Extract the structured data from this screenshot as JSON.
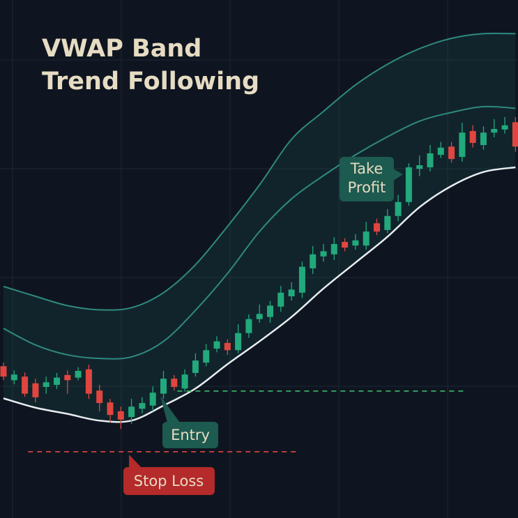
{
  "chart_data": {
    "type": "candlestick",
    "title": [
      "VWAP Band",
      "Trend Following"
    ],
    "xlim": [
      -0.327,
      48.235
    ],
    "ylim": [
      0,
      100
    ],
    "up_color": "#22a97c",
    "down_color": "#e0463f",
    "open": [
      29.3,
      26.6,
      27.3,
      26.0,
      25.3,
      25.7,
      27.6,
      27.1,
      28.7,
      24.6,
      22.3,
      20.6,
      19.5,
      21.1,
      21.7,
      24.0,
      26.9,
      25.0,
      28.0,
      30.0,
      32.7,
      33.8,
      32.4,
      35.7,
      38.4,
      38.8,
      40.8,
      42.8,
      43.5,
      48.2,
      50.5,
      50.9,
      53.3,
      52.6,
      52.6,
      56.9,
      55.6,
      58.3,
      61.0,
      67.4,
      67.7,
      70.1,
      71.7,
      69.7,
      74.7,
      72.0,
      74.4,
      75.0,
      76.4
    ],
    "close": [
      27.3,
      27.7,
      24.0,
      23.3,
      26.2,
      27.1,
      26.6,
      28.4,
      24.0,
      22.2,
      19.9,
      19.0,
      21.5,
      22.2,
      24.2,
      26.9,
      25.3,
      27.7,
      30.4,
      32.4,
      34.1,
      32.4,
      35.7,
      38.4,
      39.4,
      41.0,
      43.5,
      44.1,
      48.5,
      50.9,
      51.5,
      52.9,
      52.2,
      53.6,
      55.3,
      55.3,
      58.3,
      61.0,
      67.7,
      68.1,
      70.4,
      71.5,
      69.3,
      74.4,
      72.4,
      74.4,
      75.1,
      75.8,
      71.7
    ],
    "high": [
      30.0,
      28.5,
      28.1,
      26.9,
      27.3,
      28.0,
      28.5,
      29.1,
      29.6,
      25.7,
      23.0,
      21.5,
      23.0,
      23.3,
      25.4,
      28.4,
      27.6,
      28.7,
      31.8,
      33.6,
      35.1,
      34.5,
      37.4,
      39.3,
      41.2,
      41.9,
      44.8,
      45.5,
      49.5,
      52.5,
      52.9,
      54.2,
      54.0,
      54.8,
      57.2,
      57.8,
      59.6,
      62.4,
      68.5,
      70.0,
      72.0,
      72.6,
      72.6,
      76.3,
      75.8,
      75.6,
      77.0,
      77.4,
      77.4
    ],
    "low": [
      26.6,
      25.8,
      23.4,
      22.3,
      24.0,
      24.9,
      24.0,
      26.6,
      23.0,
      20.6,
      18.4,
      17.2,
      18.2,
      20.2,
      20.6,
      23.0,
      24.6,
      24.4,
      27.3,
      29.3,
      32.0,
      31.5,
      31.8,
      34.8,
      37.7,
      37.7,
      39.8,
      42.0,
      42.5,
      47.1,
      49.5,
      49.8,
      51.5,
      51.8,
      51.8,
      54.6,
      55.0,
      57.3,
      60.3,
      66.0,
      66.9,
      69.5,
      68.6,
      68.8,
      71.5,
      71.1,
      73.5,
      74.2,
      70.7
    ],
    "bands": {
      "x": [
        0,
        3,
        6,
        9,
        12,
        15,
        18,
        21,
        24,
        27,
        30,
        33,
        36,
        39,
        42,
        45,
        48
      ],
      "upper": {
        "color": "#2f8a80",
        "values": [
          44.7,
          42.8,
          41.0,
          40.2,
          40.6,
          43.5,
          48.9,
          56.3,
          64.3,
          73.1,
          78.5,
          83.6,
          87.6,
          90.6,
          92.6,
          93.5,
          93.5
        ]
      },
      "middle": {
        "color": "#2f8a80",
        "values": [
          36.6,
          33.4,
          31.5,
          30.8,
          31.1,
          34.1,
          40.1,
          47.2,
          55.3,
          61.6,
          66.1,
          70.1,
          73.6,
          76.6,
          78.3,
          79.4,
          79.1
        ]
      },
      "vwap": {
        "color": "#e8eef0",
        "values": [
          23.1,
          21.3,
          20.1,
          18.8,
          18.8,
          21.7,
          25.0,
          29.7,
          34.1,
          38.8,
          44.3,
          49.3,
          54.3,
          60.0,
          64.1,
          66.8,
          67.7
        ]
      }
    },
    "levels": [
      {
        "label": "Entry",
        "value": 24.5,
        "x": [
          16.3,
          43.3
        ],
        "color": "#3dbb6a",
        "box_color": "#1d5a4f"
      },
      {
        "label": "Stop Loss",
        "value": 12.8,
        "x": [
          2.3,
          27.5
        ],
        "color": "#e0463f",
        "box_color": "#b52a2a"
      }
    ],
    "take_profit": {
      "label": [
        "Take",
        "Profit"
      ],
      "box_color": "#1d5a4f"
    }
  }
}
